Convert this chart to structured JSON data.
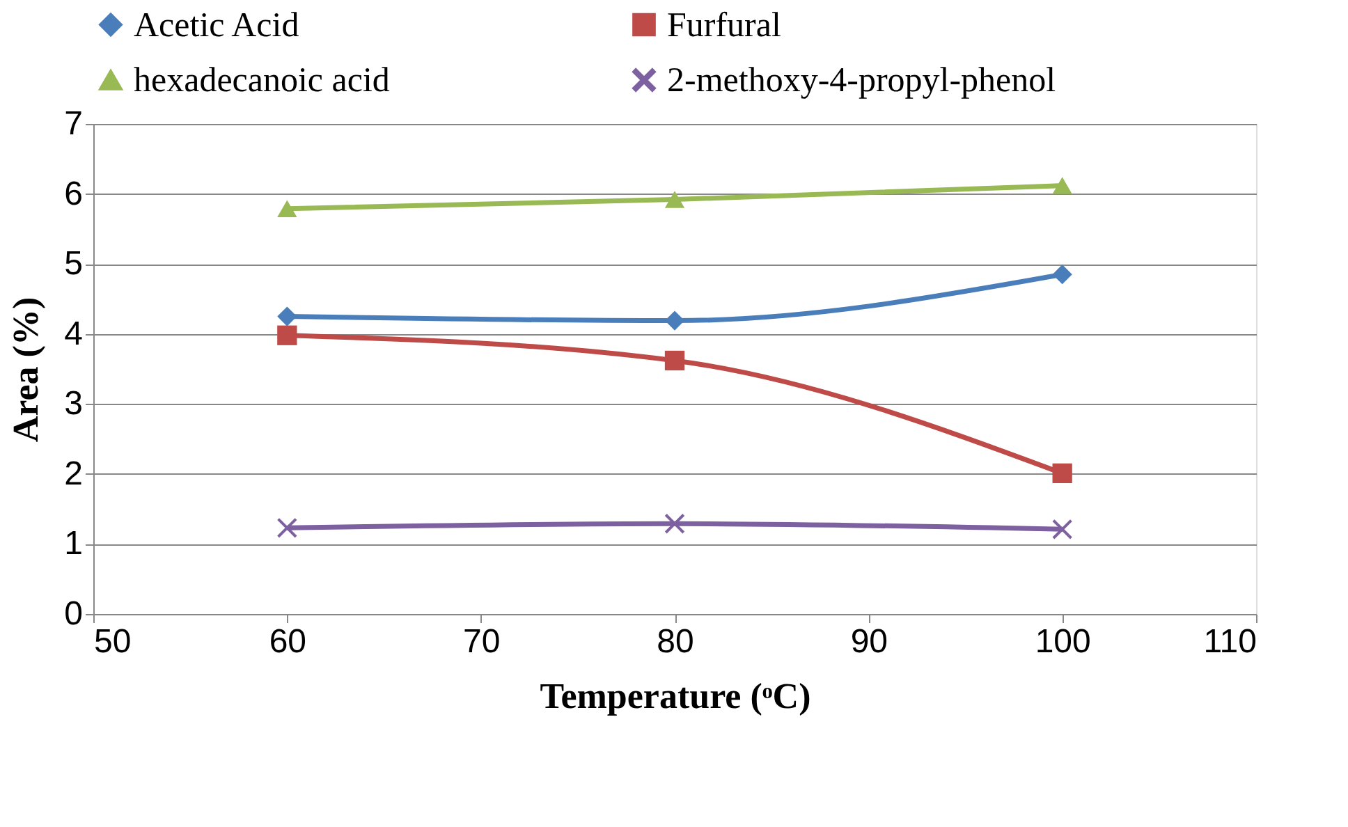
{
  "chart_data": {
    "type": "line",
    "xlabel": "Temperature (ᵒC)",
    "ylabel": "Area (%)",
    "x": [
      60,
      80,
      100
    ],
    "series": [
      {
        "name": "Acetic Acid",
        "color": "#4a7ebb",
        "marker": "diamond",
        "values": [
          4.25,
          4.19,
          4.85
        ]
      },
      {
        "name": "Furfural",
        "color": "#be4b48",
        "marker": "square",
        "values": [
          3.98,
          3.62,
          2.01
        ]
      },
      {
        "name": "hexadecanoic acid",
        "color": "#98b954",
        "marker": "triangle",
        "values": [
          5.79,
          5.92,
          6.12
        ]
      },
      {
        "name": "2-methoxy-4-propyl-phenol",
        "color": "#7d60a0",
        "marker": "cross",
        "values": [
          1.23,
          1.29,
          1.21
        ]
      }
    ],
    "xlim": [
      50,
      110
    ],
    "xticks": [
      50,
      60,
      70,
      80,
      90,
      100,
      110
    ],
    "ylim": [
      0,
      7
    ],
    "yticks": [
      0,
      1,
      2,
      3,
      4,
      5,
      6,
      7
    ],
    "grid": "y",
    "legend": "top",
    "line_style": "solid"
  }
}
